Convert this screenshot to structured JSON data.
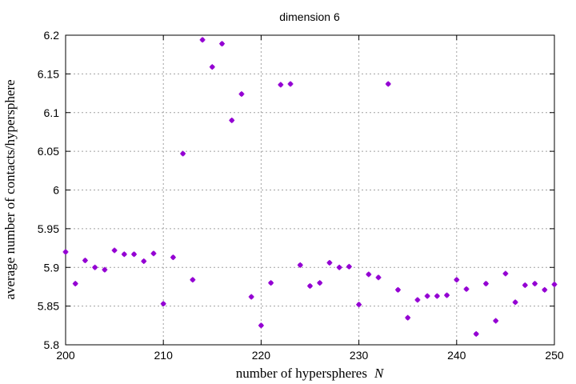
{
  "chart_data": {
    "type": "scatter",
    "title": "dimension 6",
    "xlabel": "number of hyperspheres",
    "xlabel_variable": "N",
    "ylabel": "average number of contacts/hypersphere",
    "xlim": [
      200,
      250
    ],
    "ylim": [
      5.8,
      6.2
    ],
    "xticks": [
      200,
      210,
      220,
      230,
      240,
      250
    ],
    "yticks": [
      5.8,
      5.85,
      5.9,
      5.95,
      6,
      6.05,
      6.1,
      6.15,
      6.2
    ],
    "ytick_labels": [
      "5.8",
      "5.85",
      "5.9",
      "5.95",
      "6",
      "6.05",
      "6.1",
      "6.15",
      "6.2"
    ],
    "grid": true,
    "marker_color": "#9400d3",
    "x": [
      200,
      201,
      202,
      203,
      204,
      205,
      206,
      207,
      208,
      209,
      210,
      211,
      212,
      213,
      214,
      215,
      216,
      217,
      218,
      219,
      220,
      221,
      222,
      223,
      224,
      225,
      226,
      227,
      228,
      229,
      230,
      231,
      232,
      233,
      234,
      235,
      236,
      237,
      238,
      239,
      240,
      241,
      242,
      243,
      244,
      245,
      246,
      247,
      248,
      249,
      250
    ],
    "y": [
      5.92,
      5.879,
      5.909,
      5.9,
      5.897,
      5.922,
      5.917,
      5.917,
      5.908,
      5.918,
      5.853,
      5.913,
      6.047,
      5.884,
      6.194,
      6.159,
      6.189,
      6.09,
      6.124,
      5.862,
      5.825,
      5.88,
      6.136,
      6.137,
      5.903,
      5.876,
      5.88,
      5.906,
      5.9,
      5.901,
      5.852,
      5.891,
      5.887,
      6.137,
      5.871,
      5.835,
      5.858,
      5.863,
      5.863,
      5.864,
      5.884,
      5.872,
      5.814,
      5.879,
      5.831,
      5.892,
      5.855,
      5.877,
      5.879,
      5.871,
      5.878
    ]
  }
}
